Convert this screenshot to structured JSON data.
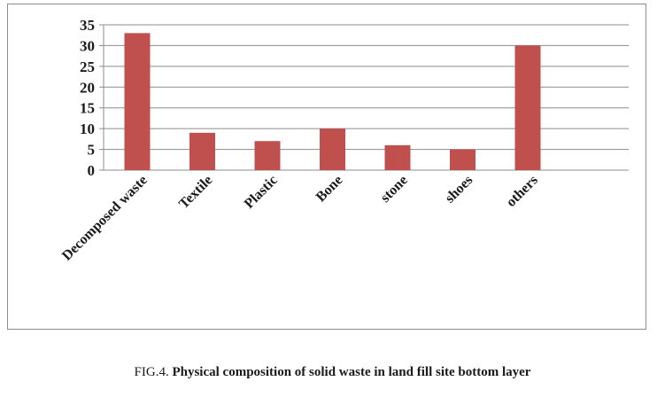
{
  "chart_data": {
    "type": "bar",
    "categories": [
      "Decomposed waste",
      "Textile",
      "Plastic",
      "Bone",
      "stone",
      "shoes",
      "others"
    ],
    "values": [
      33,
      9,
      7,
      10,
      6,
      5,
      30
    ],
    "ylim": [
      0,
      35
    ],
    "yticks": [
      0,
      5,
      10,
      15,
      20,
      25,
      30,
      35
    ],
    "grid": true,
    "legend": "none",
    "bar_color": "#c0504d"
  },
  "caption": {
    "prefix": "FIG.4.",
    "text": "Physical composition of solid waste in land fill site bottom layer"
  }
}
